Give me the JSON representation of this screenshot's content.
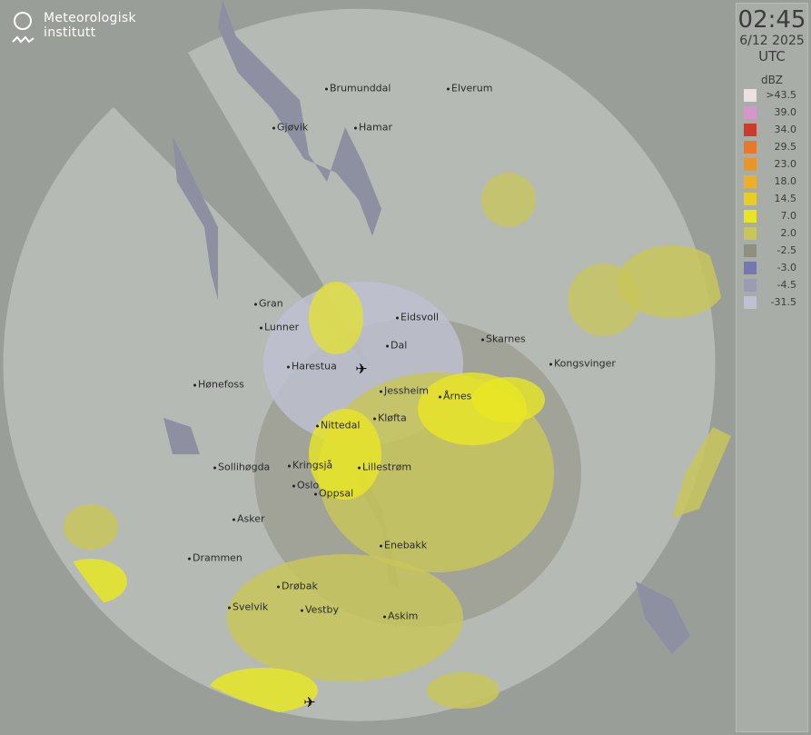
{
  "logo": {
    "line1": "Meteorologisk",
    "line2": "institutt"
  },
  "legend": {
    "time": "02:45",
    "date": "6/12 2025",
    "timezone": "UTC",
    "unit": "dBZ",
    "levels": [
      {
        "label": ">43.5",
        "color": "#ece0e2"
      },
      {
        "label": "39.0",
        "color": "#d596cc"
      },
      {
        "label": "34.0",
        "color": "#cc3a2c"
      },
      {
        "label": "29.5",
        "color": "#e8782a"
      },
      {
        "label": "23.0",
        "color": "#eb9526"
      },
      {
        "label": "18.0",
        "color": "#ebb026"
      },
      {
        "label": "14.5",
        "color": "#e8cd22"
      },
      {
        "label": "7.0",
        "color": "#e8e624"
      },
      {
        "label": "2.0",
        "color": "#c8c55a"
      },
      {
        "label": "-2.5",
        "color": "#8f9080"
      },
      {
        "label": "-3.0",
        "color": "#7677b0"
      },
      {
        "label": "-4.5",
        "color": "#9a9cb4"
      },
      {
        "label": "-31.5",
        "color": "#bfc0d2"
      }
    ]
  },
  "cities": [
    "Brumunddal",
    "Elverum",
    "Gjøvik",
    "Hamar",
    "Eidsvoll",
    "Gran",
    "Lunner",
    "Dal",
    "Skarnes",
    "Kongsvinger",
    "Harestua",
    "Jessheim",
    "Årnes",
    "Hønefoss",
    "Kløfta",
    "Nittedal",
    "Sollihøgda",
    "Kringsjå",
    "Lillestrøm",
    "Oslo",
    "Oppsal",
    "Asker",
    "Drammen",
    "Enebakk",
    "Drøbak",
    "Svelvik",
    "Vestby",
    "Askim"
  ],
  "airports": [
    "airport-gardermoen",
    "airport-rygge"
  ]
}
